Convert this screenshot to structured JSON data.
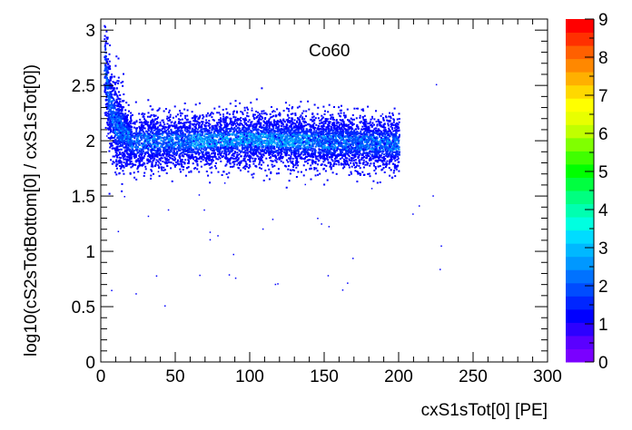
{
  "chart_data": {
    "type": "heatmap",
    "title": "",
    "annotation": "Co60",
    "xlabel": "cxS1sTot[0]  [PE]",
    "ylabel": "log10(cS2sTotBottom[0] / cxS1sTot[0])",
    "xlim": [
      0,
      300
    ],
    "ylim": [
      0,
      3.1
    ],
    "x_ticks": [
      "0",
      "50",
      "100",
      "150",
      "200",
      "250",
      "300"
    ],
    "y_ticks": [
      "0",
      "0.5",
      "1",
      "1.5",
      "2",
      "2.5",
      "3"
    ],
    "colorbar": {
      "range": [
        0,
        9
      ],
      "ticks": [
        "0",
        "1",
        "2",
        "3",
        "4",
        "5",
        "6",
        "7",
        "8",
        "9"
      ],
      "palette": [
        "#7a00ff",
        "#5a00ff",
        "#2d00ff",
        "#0000ff",
        "#0026ff",
        "#004cff",
        "#0072ff",
        "#0098ff",
        "#00b8ff",
        "#00dcff",
        "#00ffe0",
        "#00ffb0",
        "#00ff80",
        "#00ff40",
        "#00ff00",
        "#40ff00",
        "#80ff00",
        "#c0ff00",
        "#e8ff00",
        "#ffff00",
        "#ffd800",
        "#ffb000",
        "#ff8800",
        "#ff6000",
        "#ff3000",
        "#ff0000"
      ]
    },
    "band": {
      "x_range": [
        2,
        200
      ],
      "center_profile": [
        [
          2,
          2.75
        ],
        [
          5,
          2.35
        ],
        [
          10,
          2.15
        ],
        [
          20,
          2.0
        ],
        [
          50,
          2.0
        ],
        [
          100,
          2.02
        ],
        [
          150,
          2.0
        ],
        [
          200,
          1.98
        ]
      ],
      "half_width": 0.22,
      "peak_density_x": [
        60,
        140
      ]
    },
    "grid": false,
    "legend": "colorbar-right"
  }
}
